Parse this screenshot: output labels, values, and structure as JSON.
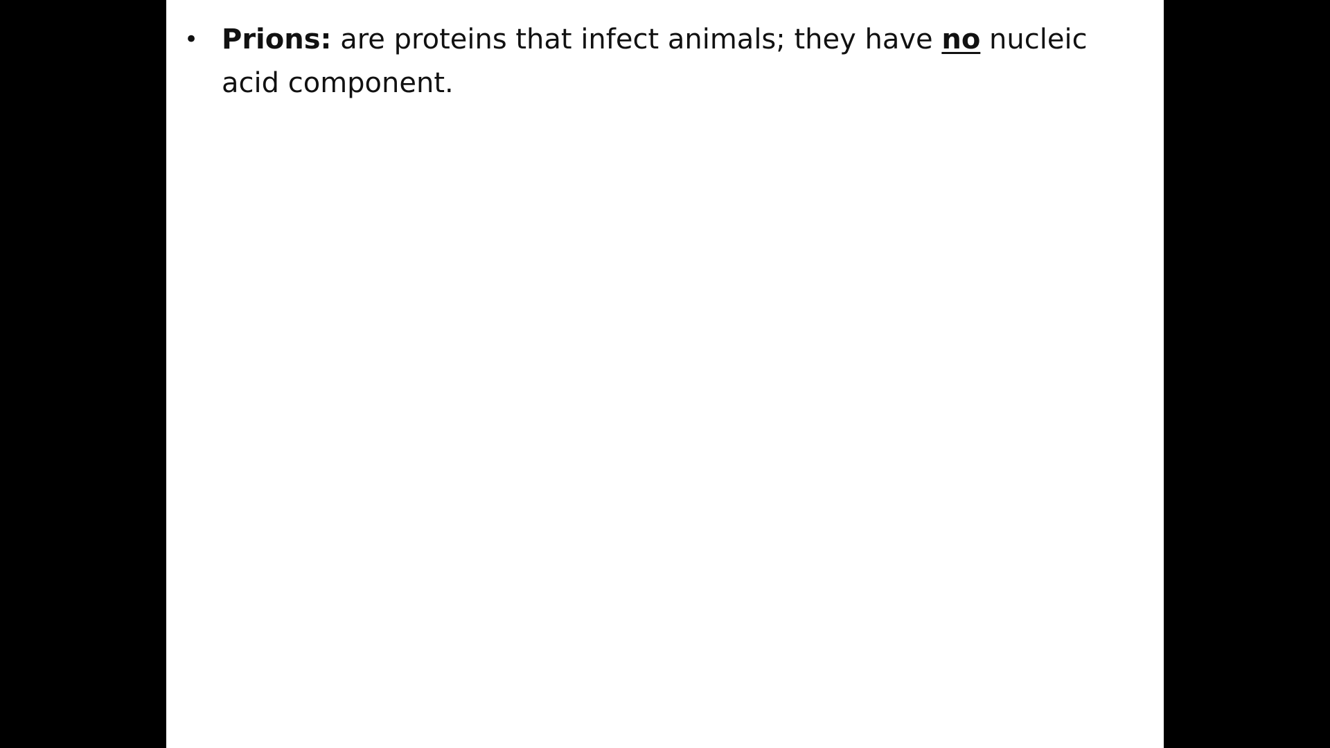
{
  "slide": {
    "bullets": [
      {
        "marker": "•",
        "term": "Prions:",
        "text_before": " are proteins that infect animals; they have ",
        "emphasis": "no",
        "text_after": " nucleic acid component."
      }
    ]
  },
  "colors": {
    "letterbox": "#000000",
    "slide_background": "#ffffff",
    "text": "#111111"
  }
}
